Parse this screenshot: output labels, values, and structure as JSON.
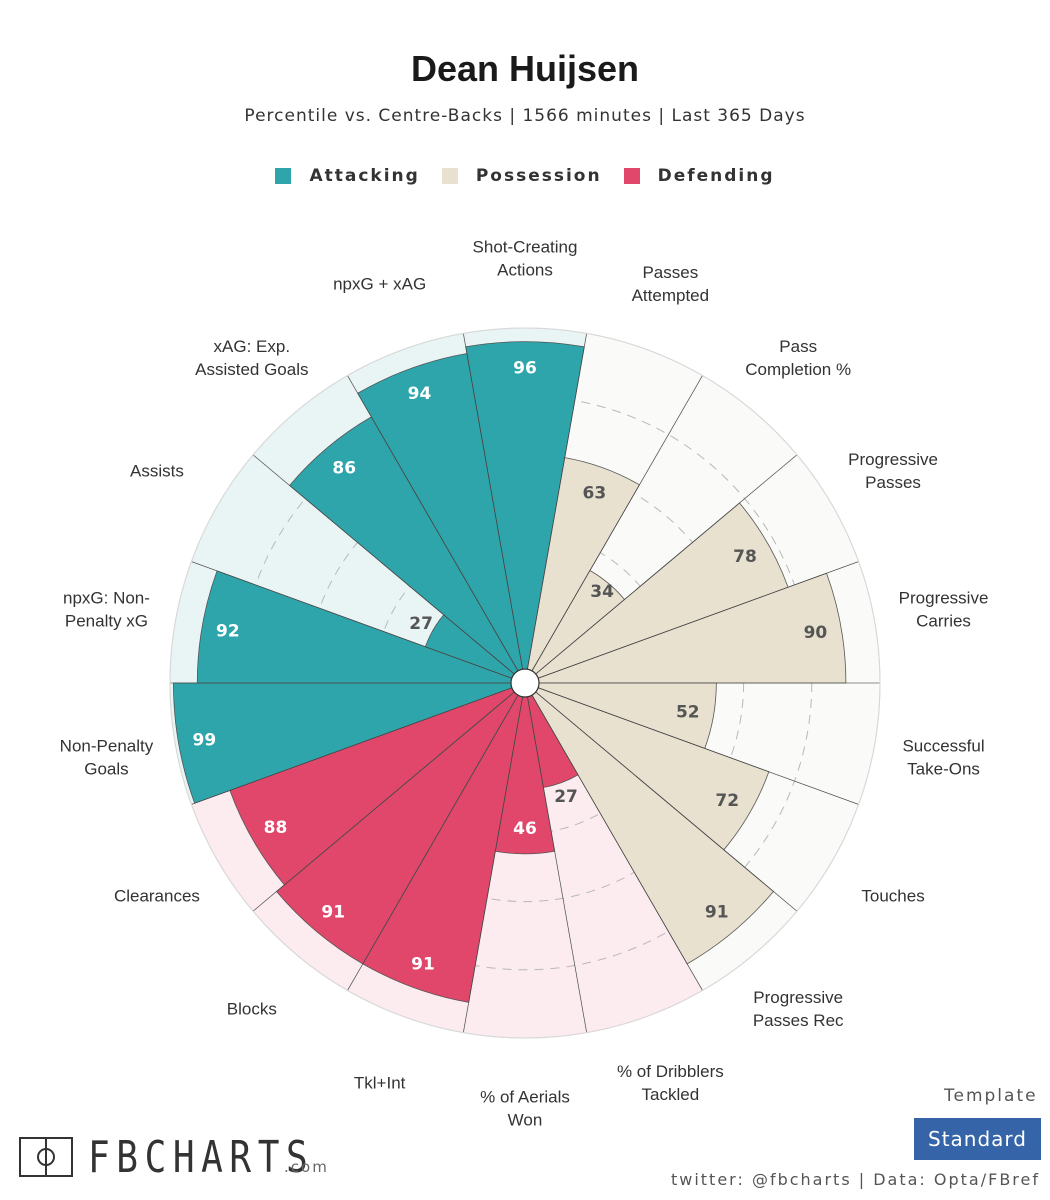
{
  "title": "Dean Huijsen",
  "subtitle": "Percentile vs. Centre-Backs | 1566 minutes | Last 365 Days",
  "legend": [
    {
      "label": "Attacking",
      "color": "#2ea5ab"
    },
    {
      "label": "Possession",
      "color": "#e8e1cf"
    },
    {
      "label": "Defending",
      "color": "#e0476b"
    }
  ],
  "chart_data": {
    "type": "polar_bar",
    "title": "Dean Huijsen",
    "subtitle": "Percentile vs. Centre-Backs | 1566 minutes | Last 365 Days",
    "rlim": [
      0,
      100
    ],
    "grid": true,
    "legend_position": "top-center",
    "categories": [
      "Shot-Creating Actions",
      "Passes Attempted",
      "Pass Completion %",
      "Progressive Passes",
      "Progressive Carries",
      "Successful Take-Ons",
      "Touches",
      "Progressive Passes Rec",
      "% of Dribblers Tackled",
      "% of Aerials Won",
      "Tkl+Int",
      "Blocks",
      "Clearances",
      "Non-Penalty Goals",
      "npxG: Non-Penalty xG",
      "Assists",
      "xAG: Exp. Assisted Goals",
      "npxG + xAG"
    ],
    "label_lines": [
      [
        "Shot-Creating",
        "Actions"
      ],
      [
        "Passes",
        "Attempted"
      ],
      [
        "Pass",
        "Completion %"
      ],
      [
        "Progressive",
        "Passes"
      ],
      [
        "Progressive",
        "Carries"
      ],
      [
        "Successful",
        "Take-Ons"
      ],
      [
        "Touches"
      ],
      [
        "Progressive",
        "Passes Rec"
      ],
      [
        "% of Dribblers",
        "Tackled"
      ],
      [
        "% of Aerials",
        "Won"
      ],
      [
        "Tkl+Int"
      ],
      [
        "Blocks"
      ],
      [
        "Clearances"
      ],
      [
        "Non-Penalty",
        "Goals"
      ],
      [
        "npxG: Non-",
        "Penalty xG"
      ],
      [
        "Assists"
      ],
      [
        "xAG: Exp.",
        "Assisted Goals"
      ],
      [
        "npxG + xAG"
      ]
    ],
    "values": [
      96,
      63,
      34,
      78,
      90,
      52,
      72,
      91,
      27,
      46,
      91,
      91,
      88,
      99,
      92,
      27,
      86,
      94
    ],
    "groups": [
      "Attacking",
      "Possession",
      "Possession",
      "Possession",
      "Possession",
      "Possession",
      "Possession",
      "Possession",
      "Defending",
      "Defending",
      "Defending",
      "Defending",
      "Defending",
      "Attacking",
      "Attacking",
      "Attacking",
      "Attacking",
      "Attacking"
    ],
    "group_colors": {
      "Attacking": {
        "fill": "#2ea5ab",
        "bg": "#e9f5f5"
      },
      "Possession": {
        "fill": "#e8e1cf",
        "bg": "#fafaf8"
      },
      "Defending": {
        "fill": "#e0476b",
        "bg": "#fcebef"
      }
    }
  },
  "footer": {
    "template_label": "Template",
    "template_value": "Standard",
    "credit": "twitter: @fbcharts | Data: Opta/FBref",
    "brand": "FBCHARTS",
    "brand_domain": ".com"
  }
}
